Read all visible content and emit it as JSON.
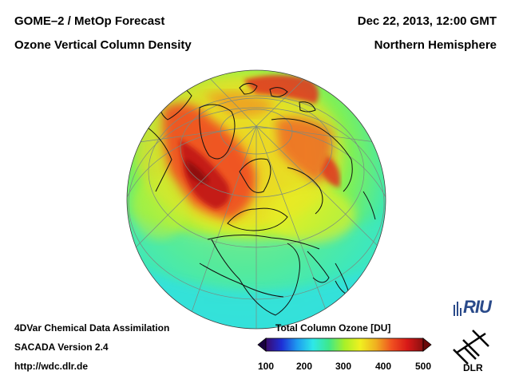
{
  "header": {
    "title_left": "GOME–2 / MetOp Forecast",
    "subtitle_left": "Ozone Vertical Column Density",
    "datetime": "Dec 22, 2013, 12:00 GMT",
    "region": "Northern Hemisphere"
  },
  "footer": {
    "line1": "4DVar Chemical Data Assimilation",
    "line2": "SACADA Version 2.4",
    "line3": "http://wdc.dlr.de"
  },
  "colorbar": {
    "title": "Total Column Ozone [DU]",
    "min": 100,
    "max": 500,
    "ticks": [
      "100",
      "200",
      "300",
      "400",
      "500"
    ],
    "colors": [
      "#3a0a6e",
      "#1e2fd6",
      "#1e9cf0",
      "#2ee8e8",
      "#3ee88a",
      "#a8f028",
      "#f0f020",
      "#f0b020",
      "#f05020",
      "#d81818",
      "#8a1010"
    ]
  },
  "logos": {
    "riu": "RIU",
    "dlr": "DLR"
  },
  "map": {
    "background": "#ffffff",
    "ozone_field": "mostly 250-300 DU at low latitudes, high values (400-500 DU) over North Atlantic, Europe and Siberia"
  }
}
